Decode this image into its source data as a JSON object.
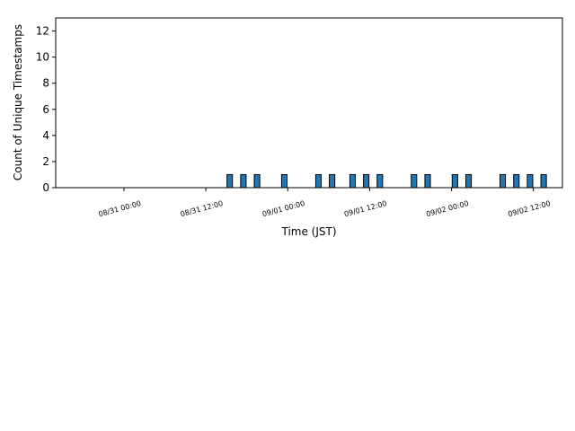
{
  "chart_data": {
    "type": "bar",
    "xlabel": "Time (JST)",
    "ylabel": "Count of Unique Timestamps",
    "x": [
      "08/31 15:00",
      "08/31 17:00",
      "08/31 19:00",
      "08/31 23:00",
      "09/01 04:00",
      "09/01 06:00",
      "09/01 09:00",
      "09/01 11:00",
      "09/01 13:00",
      "09/01 18:00",
      "09/01 20:00",
      "09/02 00:00",
      "09/02 02:00",
      "09/02 07:00",
      "09/02 09:00",
      "09/02 11:00",
      "09/02 13:00"
    ],
    "values": [
      1,
      1,
      1,
      1,
      1,
      1,
      1,
      1,
      1,
      1,
      1,
      1,
      1,
      1,
      1,
      1,
      1
    ],
    "color": "#1f77b4",
    "edgecolor": "#000000",
    "xlim": [
      "08/30 14:00",
      "09/02 16:15"
    ],
    "xticks": [
      "08/31 00:00",
      "08/31 12:00",
      "09/01 00:00",
      "09/01 12:00",
      "09/02 00:00",
      "09/02 12:00"
    ],
    "ylim": [
      0,
      13
    ],
    "yticks": [
      0,
      2,
      4,
      6,
      8,
      10,
      12
    ]
  }
}
